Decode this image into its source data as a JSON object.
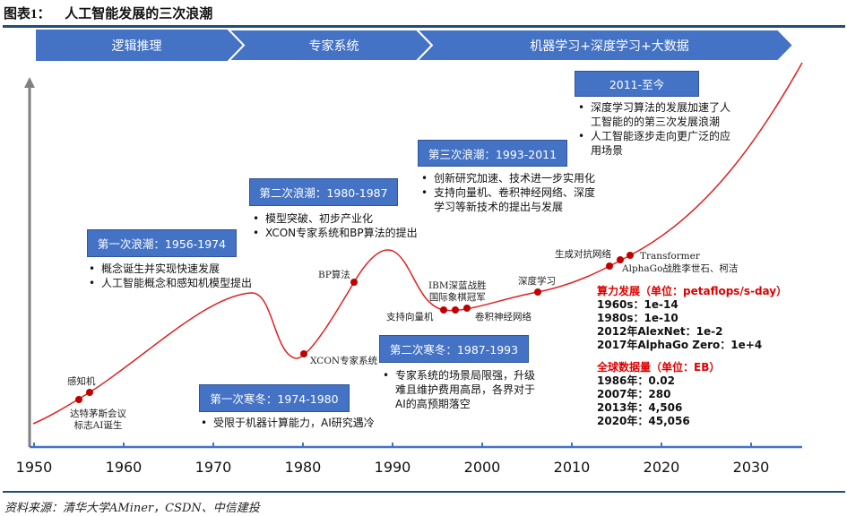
{
  "title": {
    "prefix": "图表1：",
    "text": "人工智能发展的三次浪潮"
  },
  "phases": [
    "逻辑推理",
    "专家系统",
    "机器学习+深度学习+大数据"
  ],
  "stages": [
    {
      "label": "第一次浪潮：1956-1974",
      "bullets": [
        "概念诞生并实现快速发展",
        "人工智能概念和感知机模型提出"
      ]
    },
    {
      "label": "第一次寒冬：1974-1980",
      "bullets": [
        "受限于机器计算能力，AI研究遇冷"
      ]
    },
    {
      "label": "第二次浪潮：1980-1987",
      "bullets": [
        "模型突破、初步产业化",
        "XCON专家系统和BP算法的提出"
      ]
    },
    {
      "label": "第二次寒冬：1987-1993",
      "bullets": [
        "专家系统的场景局限强，升级",
        "难且维护费用高昂，各界对于",
        "AI的高预期落空"
      ]
    },
    {
      "label": "第三次浪潮：1993-2011",
      "bullets": [
        "创新研究加速、技术进一步实用化",
        "支持向量机、卷积神经网络、深度",
        "学习等新技术的提出与发展"
      ]
    },
    {
      "label": "2011-至今",
      "bullets": [
        "深度学习算法的发展加速了人",
        "工智能的的第三次发展浪潮",
        "人工智能逐步走向更广泛的应",
        "用场景"
      ]
    }
  ],
  "events": {
    "perceptron": "感知机",
    "dartmouth": [
      "达特茅斯会议",
      "标志AI诞生"
    ],
    "xcon": "XCON专家系统",
    "bp": "BP算法",
    "ibm": [
      "IBM深蓝战胜",
      "国际象棋冠军"
    ],
    "svm": "支持向量机",
    "cnn": "卷积神经网络",
    "dl": "深度学习",
    "gan": "生成对抗网络",
    "transformer": "Transformer",
    "alphago": "AlphaGo战胜李世石、柯洁"
  },
  "compute": {
    "heading": "算力发展（单位：petaflops/s-day）",
    "rows": [
      "1960s：1e-14",
      "1980s：1e-10",
      "2012年AlexNet：1e-2",
      "2017年AlphaGo Zero：1e+4"
    ]
  },
  "datavolume": {
    "heading": "全球数据量（单位：EB）",
    "rows": [
      "1986年：0.02",
      "2007年：280",
      "2013年：4,506",
      "2020年：45,056"
    ]
  },
  "axis_ticks": [
    "1950",
    "1960",
    "1970",
    "1980",
    "1990",
    "2000",
    "2010",
    "2020",
    "2030"
  ],
  "source": "资料来源：清华大学AMiner，CSDN、中信建投",
  "colors": {
    "banner": "#4472c4",
    "box": "#4472c4",
    "curve": "#e02020",
    "dot": "#c00000",
    "axis": "#4472c4",
    "highlight": "#e00000"
  }
}
